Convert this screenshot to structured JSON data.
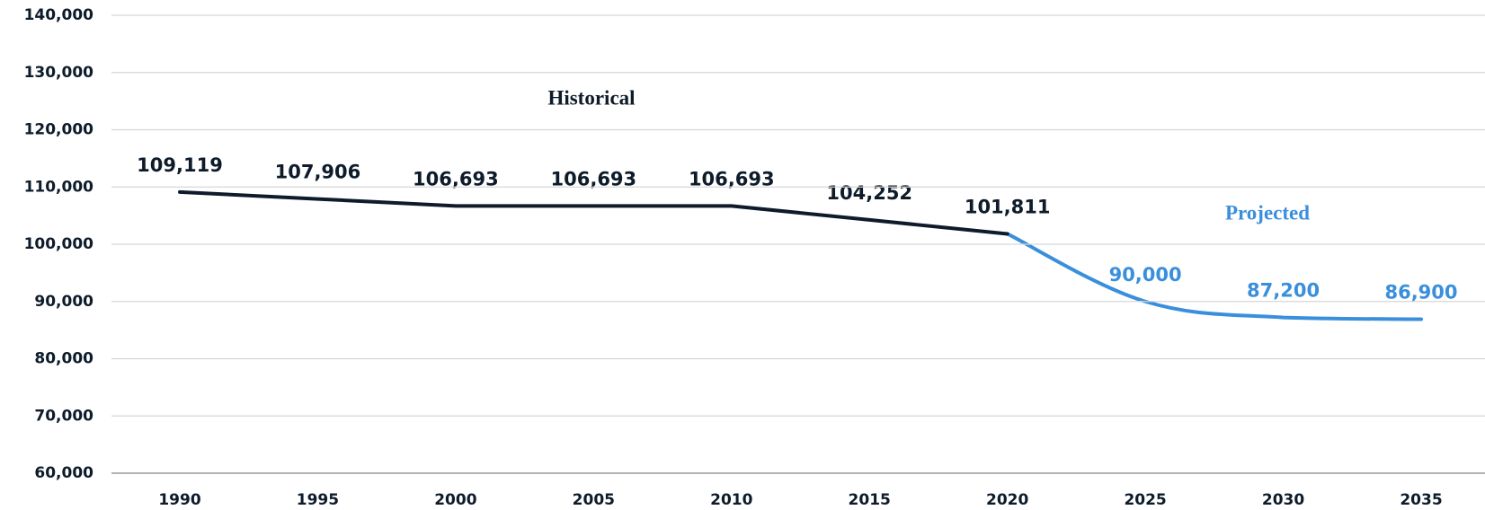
{
  "chart_data": {
    "type": "line",
    "x": [
      1990,
      1995,
      2000,
      2005,
      2010,
      2015,
      2020,
      2025,
      2030,
      2035
    ],
    "series": [
      {
        "name": "Historical",
        "color": "#0d1b2a",
        "values": [
          109119,
          107906,
          106693,
          106693,
          106693,
          104252,
          101811,
          null,
          null,
          null
        ],
        "value_labels": [
          "109,119",
          "107,906",
          "106,693",
          "106,693",
          "106,693",
          "104,252",
          "101,811",
          null,
          null,
          null
        ]
      },
      {
        "name": "Projected",
        "color": "#3a8fdc",
        "values": [
          null,
          null,
          null,
          null,
          null,
          null,
          101811,
          90000,
          87200,
          86900
        ],
        "value_labels": [
          null,
          null,
          null,
          null,
          null,
          null,
          null,
          "90,000",
          "87,200",
          "86,900"
        ]
      }
    ],
    "xlim": [
      1990,
      2035
    ],
    "xticks": [
      1990,
      1995,
      2000,
      2005,
      2010,
      2015,
      2020,
      2025,
      2030,
      2035
    ],
    "ylim": [
      60000,
      140000
    ],
    "yticks": [
      {
        "value": 60000,
        "label": "60,000"
      },
      {
        "value": 70000,
        "label": "70,000"
      },
      {
        "value": 80000,
        "label": "80,000"
      },
      {
        "value": 90000,
        "label": "90,000"
      },
      {
        "value": 100000,
        "label": "100,000"
      },
      {
        "value": 110000,
        "label": "110,000"
      },
      {
        "value": 120000,
        "label": "120,000"
      },
      {
        "value": 130000,
        "label": "130,000"
      },
      {
        "value": 140000,
        "label": "140,000"
      }
    ],
    "grid": true
  }
}
